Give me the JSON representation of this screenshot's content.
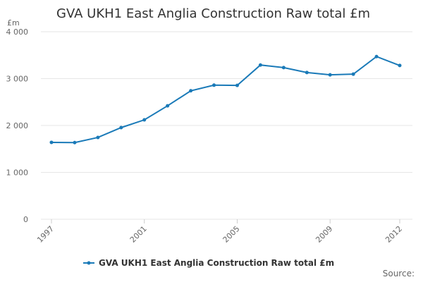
{
  "chart_data": {
    "type": "line",
    "title": "GVA UKH1 East Anglia Construction Raw total £m",
    "y_unit": "£m",
    "source": "Source:",
    "x": [
      1997,
      1998,
      1999,
      2000,
      2001,
      2002,
      2003,
      2004,
      2005,
      2006,
      2007,
      2008,
      2009,
      2010,
      2011,
      2012
    ],
    "series": [
      {
        "name": "GVA UKH1 East Anglia Construction Raw total £m",
        "color": "#1a7ab8",
        "values": [
          1640,
          1635,
          1745,
          1955,
          2120,
          2420,
          2740,
          2860,
          2855,
          3290,
          3235,
          3130,
          3080,
          3095,
          3470,
          3280
        ]
      }
    ],
    "xlim": [
      1997,
      2012
    ],
    "xticks": [
      1997,
      2001,
      2005,
      2009,
      2012
    ],
    "ylim": [
      0,
      4000
    ],
    "yticks": [
      0,
      {
        "value": 1000,
        "label": "1 000"
      },
      {
        "value": 2000,
        "label": "2 000"
      },
      {
        "value": 3000,
        "label": "3 000"
      },
      {
        "value": 4000,
        "label": "4 000"
      }
    ],
    "grid": true
  }
}
